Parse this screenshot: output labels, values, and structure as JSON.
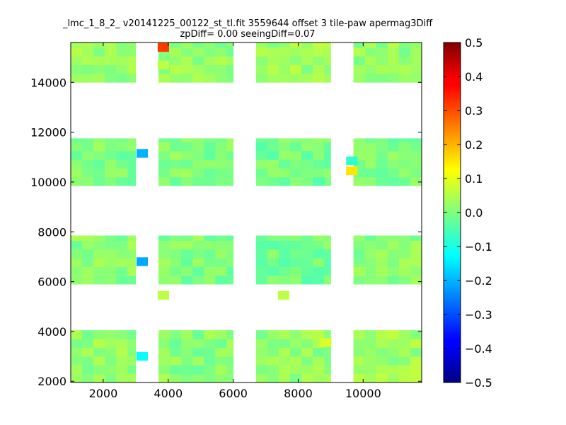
{
  "chart_data": {
    "type": "heatmap",
    "title": "_lmc_1_8_2_ v20141225_00122_st_tl.fit 3559644 offset 3 tile-paw apermag3Diff",
    "subtitle": "zpDiff= 0.00 seeingDiff=0.07",
    "xlabel": "",
    "ylabel": "",
    "xlim": [
      1000,
      11800
    ],
    "ylim": [
      1950,
      15600
    ],
    "x_ticks": [
      "2000",
      "4000",
      "6000",
      "8000",
      "10000"
    ],
    "y_ticks": [
      "2000",
      "4000",
      "6000",
      "8000",
      "10000",
      "12000",
      "14000"
    ],
    "colorbar": {
      "colormap": "jet",
      "range": [
        -0.5,
        0.5
      ],
      "ticks": [
        "−0.5",
        "−0.4",
        "−0.3",
        "−0.2",
        "−0.1",
        "0.0",
        "0.1",
        "0.2",
        "0.3",
        "0.4",
        "0.5"
      ]
    },
    "cell_size": [
      350,
      350
    ],
    "blocks": [
      {
        "x": [
          1000,
          3000
        ],
        "y": [
          14000,
          15600
        ],
        "value": 0.02
      },
      {
        "x": [
          3700,
          6000
        ],
        "y": [
          14000,
          15600
        ],
        "value": 0.02
      },
      {
        "x": [
          6700,
          9000
        ],
        "y": [
          14000,
          15600
        ],
        "value": 0.03
      },
      {
        "x": [
          9700,
          11800
        ],
        "y": [
          14000,
          15600
        ],
        "value": 0.02
      },
      {
        "x": [
          1000,
          3000
        ],
        "y": [
          9850,
          11750
        ],
        "value": 0.0
      },
      {
        "x": [
          3700,
          6000
        ],
        "y": [
          9850,
          11750
        ],
        "value": 0.0
      },
      {
        "x": [
          6700,
          9000
        ],
        "y": [
          9850,
          11750
        ],
        "value": -0.01
      },
      {
        "x": [
          9700,
          11800
        ],
        "y": [
          9850,
          11750
        ],
        "value": 0.0
      },
      {
        "x": [
          1000,
          3000
        ],
        "y": [
          5900,
          7850
        ],
        "value": 0.01
      },
      {
        "x": [
          3700,
          6000
        ],
        "y": [
          5900,
          7850
        ],
        "value": 0.0
      },
      {
        "x": [
          6700,
          9000
        ],
        "y": [
          5900,
          7850
        ],
        "value": -0.01
      },
      {
        "x": [
          9700,
          11800
        ],
        "y": [
          5900,
          7850
        ],
        "value": 0.01
      },
      {
        "x": [
          1000,
          3000
        ],
        "y": [
          1950,
          4050
        ],
        "value": 0.02
      },
      {
        "x": [
          3700,
          6000
        ],
        "y": [
          1950,
          4050
        ],
        "value": 0.01
      },
      {
        "x": [
          6700,
          9000
        ],
        "y": [
          1950,
          4050
        ],
        "value": 0.02
      },
      {
        "x": [
          9700,
          11800
        ],
        "y": [
          1950,
          4050
        ],
        "value": 0.03
      }
    ],
    "highlight_cells": [
      {
        "x": 3850,
        "y": 15400,
        "value": 0.32
      },
      {
        "x": 3850,
        "y": 14700,
        "value": 0.06
      },
      {
        "x": 3200,
        "y": 11150,
        "value": -0.2
      },
      {
        "x": 9650,
        "y": 10850,
        "value": -0.08
      },
      {
        "x": 9650,
        "y": 10450,
        "value": 0.15
      },
      {
        "x": 3200,
        "y": 6800,
        "value": -0.21
      },
      {
        "x": 3200,
        "y": 3000,
        "value": -0.12
      },
      {
        "x": 8850,
        "y": 3550,
        "value": 0.09
      },
      {
        "x": 3850,
        "y": 5450,
        "value": 0.06
      },
      {
        "x": 7550,
        "y": 5450,
        "value": 0.06
      }
    ]
  }
}
